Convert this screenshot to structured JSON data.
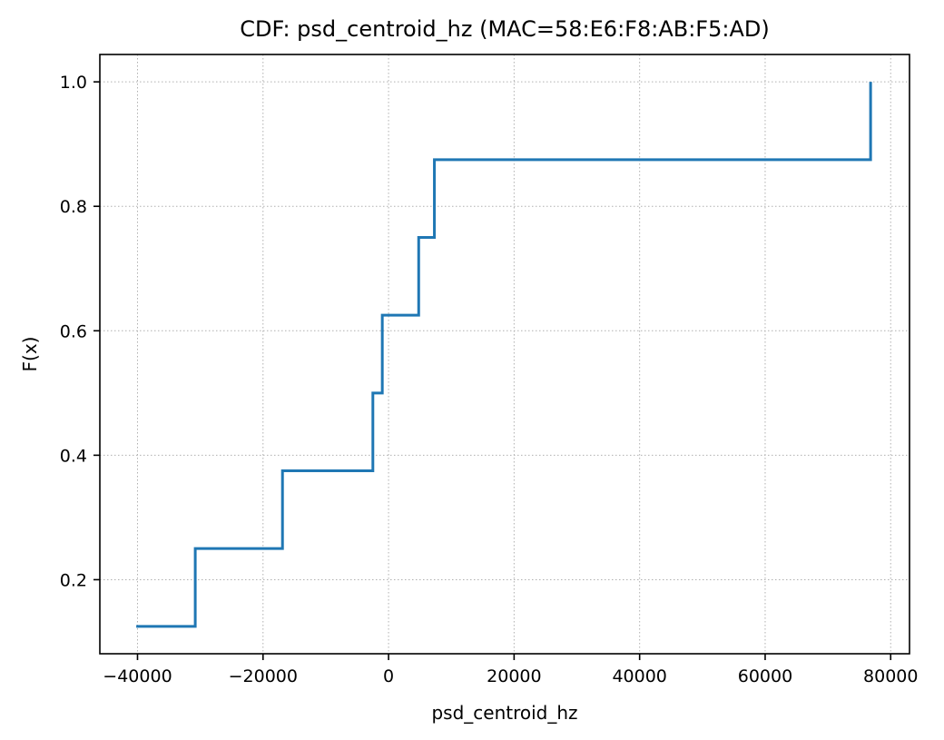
{
  "chart_data": {
    "type": "line",
    "step": "post",
    "title": "CDF: psd_centroid_hz (MAC=58:E6:F8:AB:F5:AD)",
    "xlabel": "psd_centroid_hz",
    "ylabel": "F(x)",
    "xlim": [
      -46000,
      83000
    ],
    "ylim": [
      0.081,
      1.044
    ],
    "xticks": [
      -40000,
      -20000,
      0,
      20000,
      40000,
      60000,
      80000
    ],
    "xtick_labels": [
      "−40000",
      "−20000",
      "0",
      "20000",
      "40000",
      "60000",
      "80000"
    ],
    "yticks": [
      0.2,
      0.4,
      0.6,
      0.8,
      1.0
    ],
    "ytick_labels": [
      "0.2",
      "0.4",
      "0.6",
      "0.8",
      "1.0"
    ],
    "grid": true,
    "series": [
      {
        "color": "#1f77b4",
        "x": [
          -40200,
          -30800,
          -16900,
          -2500,
          -1000,
          4800,
          7300,
          76800
        ],
        "y": [
          0.125,
          0.25,
          0.375,
          0.5,
          0.625,
          0.75,
          0.875,
          1.0
        ]
      }
    ]
  }
}
